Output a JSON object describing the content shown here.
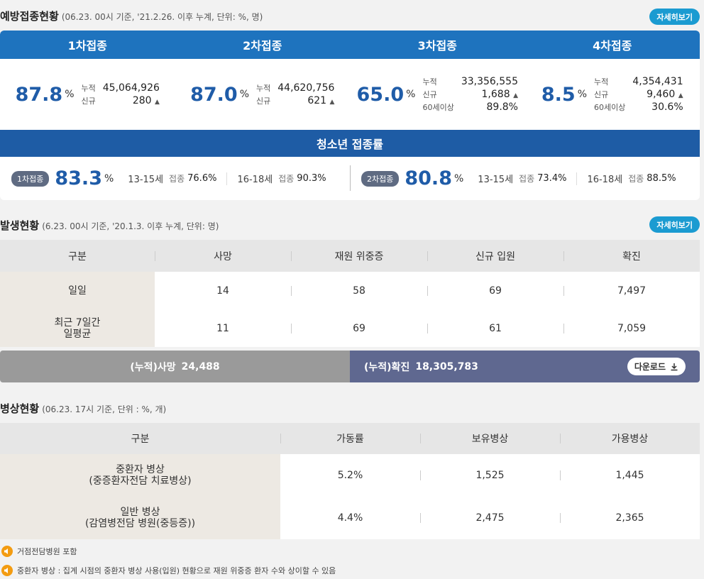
{
  "vaccination": {
    "title": "예방접종현황",
    "subtitle": "(06.23. 00시 기준, '21.2.26. 이후 누계, 단위: %, 명)",
    "more_label": "자세히보기",
    "doses": [
      {
        "label": "1차접종",
        "rate": "87.8",
        "unit": "%",
        "stats": [
          {
            "label": "누적",
            "value": "45,064,926"
          },
          {
            "label": "신규",
            "value": "280",
            "trend": "▲"
          }
        ]
      },
      {
        "label": "2차접종",
        "rate": "87.0",
        "unit": "%",
        "stats": [
          {
            "label": "누적",
            "value": "44,620,756"
          },
          {
            "label": "신규",
            "value": "621",
            "trend": "▲"
          }
        ]
      },
      {
        "label": "3차접종",
        "rate": "65.0",
        "unit": "%",
        "stats": [
          {
            "label": "누적",
            "value": "33,356,555"
          },
          {
            "label": "신규",
            "value": "1,688",
            "trend": "▲"
          },
          {
            "label": "60세이상",
            "value": "89.8%"
          }
        ]
      },
      {
        "label": "4차접종",
        "rate": "8.5",
        "unit": "%",
        "stats": [
          {
            "label": "누적",
            "value": "4,354,431"
          },
          {
            "label": "신규",
            "value": "9,460",
            "trend": "▲"
          },
          {
            "label": "60세이상",
            "value": "30.6%"
          }
        ]
      }
    ],
    "teen": {
      "title": "청소년 접종률",
      "groups": [
        {
          "badge": "1차접종",
          "rate": "83.3",
          "unit": "%",
          "ages": [
            {
              "age": "13-15세",
              "label": "접종",
              "value": "76.6%"
            },
            {
              "age": "16-18세",
              "label": "접종",
              "value": "90.3%"
            }
          ]
        },
        {
          "badge": "2차접종",
          "rate": "80.8",
          "unit": "%",
          "ages": [
            {
              "age": "13-15세",
              "label": "접종",
              "value": "73.4%"
            },
            {
              "age": "16-18세",
              "label": "접종",
              "value": "88.5%"
            }
          ]
        }
      ]
    }
  },
  "occurrence": {
    "title": "발생현황",
    "subtitle": "(6.23. 00시 기준, '20.1.3. 이후 누계, 단위: 명)",
    "more_label": "자세히보기",
    "headers": [
      "구분",
      "사망",
      "재원 위중증",
      "신규 입원",
      "확진"
    ],
    "rows": [
      [
        "일일",
        "14",
        "58",
        "69",
        "7,497"
      ],
      [
        "최근 7일간\n일평균",
        "11",
        "69",
        "61",
        "7,059"
      ]
    ],
    "cum_death_label": "(누적)사망",
    "cum_death_value": "24,488",
    "cum_confirmed_label": "(누적)확진",
    "cum_confirmed_value": "18,305,783",
    "download_label": "다운로드"
  },
  "beds": {
    "title": "병상현황",
    "subtitle": "(06.23. 17시 기준, 단위 : %, 개)",
    "headers": [
      "구분",
      "가동률",
      "보유병상",
      "가용병상"
    ],
    "rows": [
      [
        "중환자 병상\n(중증환자전담 치료병상)",
        "5.2%",
        "1,525",
        "1,445"
      ],
      [
        "일반 병상\n(감염병전담 병원(중등증))",
        "4.4%",
        "2,475",
        "2,365"
      ]
    ]
  },
  "notes": [
    "거점전담병원 포함",
    "중환자 병상 : 집계 시점의 중환자 병상 사용(입원) 현황으로 재원 위중증 환자 수와 상이할 수 있음"
  ],
  "colors": {
    "primary": "#1e73be",
    "teen_header": "#1e5ca5",
    "accent": "#1b9bd1",
    "cum_death": "#9a9a9a",
    "cum_confirmed": "#5f6890",
    "note_icon": "#f39c12"
  },
  "icons": {
    "trend": "triangle-up-icon",
    "download": "download-icon",
    "note": "speaker-icon"
  }
}
